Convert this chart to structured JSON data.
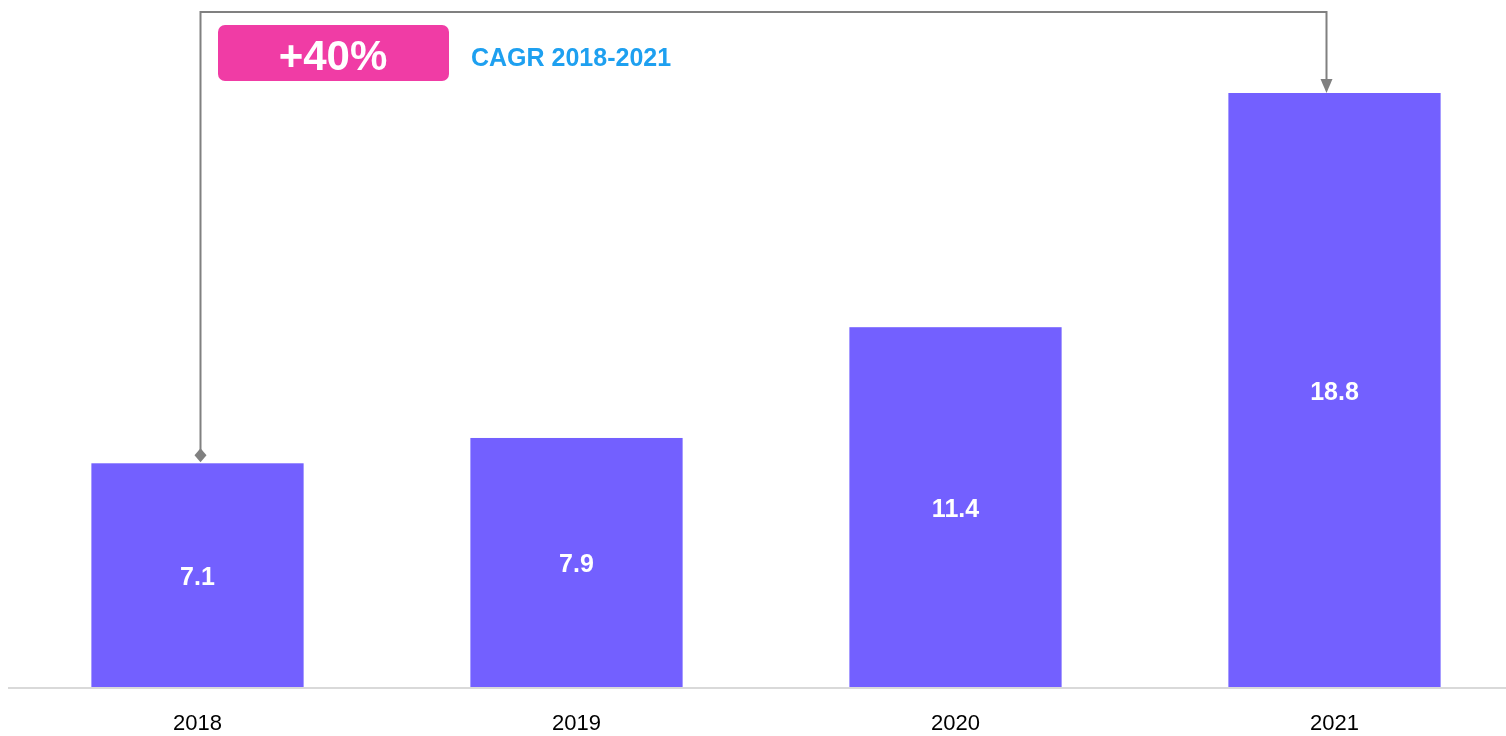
{
  "chart_data": {
    "type": "bar",
    "categories": [
      "2018",
      "2019",
      "2020",
      "2021"
    ],
    "values": [
      7.1,
      7.9,
      11.4,
      18.8
    ],
    "color": "#7360ff",
    "data_labels": true,
    "annotations": [
      "+40%",
      "CAGR 2018-2021"
    ]
  }
}
